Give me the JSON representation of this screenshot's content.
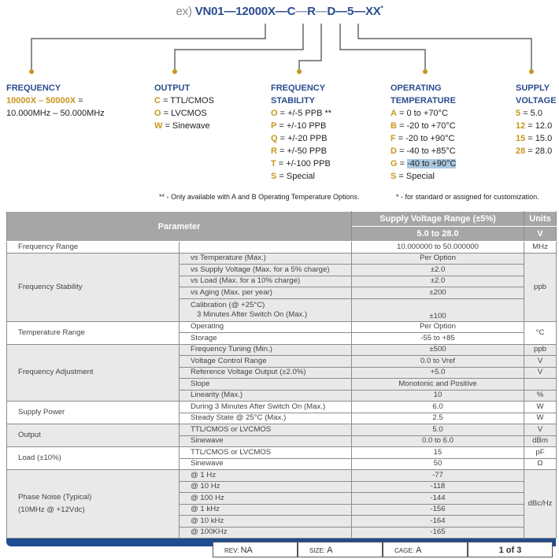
{
  "code": {
    "prefix": "ex)",
    "p1": "VN01",
    "sep": "—",
    "p2": "12000X",
    "p3": "C",
    "p4": "R",
    "p5": "D",
    "p6": "5",
    "p7": "XX",
    "mark": "*"
  },
  "colors": {
    "heading": "#2a4d8f",
    "key": "#c8961e",
    "header_bg": "#a6a6a6",
    "footer_bar": "#1f4b91"
  },
  "legend": {
    "frequency": {
      "title": "FREQUENCY",
      "key": "10000X – 50000X",
      "eq": " =",
      "line2": "10.000MHz – 50.000MHz"
    },
    "output": {
      "title": "OUTPUT",
      "items": [
        {
          "k": "C",
          "v": " = TTL/CMOS"
        },
        {
          "k": "O",
          "v": " = LVCMOS"
        },
        {
          "k": "W",
          "v": " = Sinewave"
        }
      ]
    },
    "stability": {
      "title1": "FREQUENCY",
      "title2": "STABILITY",
      "items": [
        {
          "k": "O",
          "v": " = +/-5 PPB **"
        },
        {
          "k": "P",
          "v": " = +/-10 PPB"
        },
        {
          "k": "Q",
          "v": " = +/-20 PPB"
        },
        {
          "k": "R",
          "v": " = +/-50 PPB"
        },
        {
          "k": "T",
          "v": " = +/-100 PPB"
        },
        {
          "k": "S",
          "v": " = Special"
        }
      ]
    },
    "temperature": {
      "title1": "OPERATING",
      "title2": "TEMPERATURE",
      "items": [
        {
          "k": "A",
          "v": " = 0 to +70°C"
        },
        {
          "k": "B",
          "v": " = -20 to +70°C"
        },
        {
          "k": "F",
          "v": " = -20 to +90°C"
        },
        {
          "k": "D",
          "v": " = -40 to +85°C"
        },
        {
          "k": "G",
          "v": " = ",
          "hl": "-40 to +90°C"
        },
        {
          "k": "S",
          "v": " = Special"
        }
      ]
    },
    "voltage": {
      "title1": "SUPPLY",
      "title2": "VOLTAGE",
      "items": [
        {
          "k": "5",
          "v": " = 5.0"
        },
        {
          "k": "12",
          "v": " = 12.0"
        },
        {
          "k": "15",
          "v": " = 15.0"
        },
        {
          "k": "28",
          "v": " = 28.0"
        }
      ]
    }
  },
  "notes": {
    "n1": "** - Only available with A and B Operating Temperature Options.",
    "n2": "* - for standard or assigned for customization."
  },
  "table": {
    "header": {
      "parameter": "Parameter",
      "range": "Supply Voltage Range (±5%)",
      "units": "Units",
      "range_value": "5.0 to 28.0",
      "units_value": "V"
    },
    "groups": [
      {
        "name": "Frequency Range",
        "rows": [
          {
            "sub": "",
            "val": "10.000000 to 50.000000",
            "unit": "MHz"
          }
        ]
      },
      {
        "name": "Frequency Stability",
        "unit": "ppb",
        "rows": [
          {
            "sub": "vs Temperature (Max.)",
            "val": "Per Option"
          },
          {
            "sub": "vs Supply Voltage (Max. for a 5% charge)",
            "val": "±2.0"
          },
          {
            "sub": "vs Load (Max. for a 10% charge)",
            "val": "±2.0"
          },
          {
            "sub": "vs Aging (Max. per year)",
            "val": "±200"
          },
          {
            "sub": "Calibration (@ +25°C)",
            "sub2": "3 Minutes After Switch On (Max.)",
            "val": "±100"
          }
        ]
      },
      {
        "name": "Temperature Range",
        "unit": "°C",
        "rows": [
          {
            "sub": "Operating",
            "val": "Per Option"
          },
          {
            "sub": "Storage",
            "val": "-55 to +85"
          }
        ]
      },
      {
        "name": "Frequency Adjustment",
        "rows": [
          {
            "sub": "Frequency Tuning (Min.)",
            "val": "±500",
            "unit": "ppb"
          },
          {
            "sub": "Voltage Control Range",
            "val": "0.0 to Vref",
            "unit": "V"
          },
          {
            "sub": "Reference Voltage Output (±2.0%)",
            "val": "+5.0",
            "unit": "V"
          },
          {
            "sub": "Slope",
            "val": "Monotonic and Positive",
            "unit": ""
          },
          {
            "sub": "Linearity (Max.)",
            "val": "10",
            "unit": "%"
          }
        ]
      },
      {
        "name": "Supply Power",
        "rows": [
          {
            "sub": "During 3 Minutes After Switch On (Max.)",
            "val": "6.0",
            "unit": "W"
          },
          {
            "sub": "Steady State @ 25°C (Max.)",
            "val": "2.5",
            "unit": "W"
          }
        ]
      },
      {
        "name": "Output",
        "rows": [
          {
            "sub": "TTL/CMOS or LVCMOS",
            "val": "5.0",
            "unit": "V"
          },
          {
            "sub": "Sinewave",
            "val": "0.0 to 6.0",
            "unit": "dBm"
          }
        ]
      },
      {
        "name": "Load (±10%)",
        "rows": [
          {
            "sub": "TTL/CMOS or LVCMOS",
            "val": "15",
            "unit": "pF"
          },
          {
            "sub": "Sinewave",
            "val": "50",
            "unit": "Ω"
          }
        ]
      },
      {
        "name": "Phase Noise (Typical)",
        "name2": "(10MHz @ +12Vdc)",
        "unit": "dBc/Hz",
        "rows": [
          {
            "sub": "@ 1 Hz",
            "val": "-77"
          },
          {
            "sub": "@ 10 Hz",
            "val": "-118"
          },
          {
            "sub": "@ 100 Hz",
            "val": "-144"
          },
          {
            "sub": "@ 1 kHz",
            "val": "-156"
          },
          {
            "sub": "@ 10 kHz",
            "val": "-164"
          },
          {
            "sub": "@ 100KHz",
            "val": "-165"
          }
        ]
      }
    ]
  },
  "footer": {
    "rev_label": "REV:",
    "rev": "NA",
    "size_label": "SIZE:",
    "size": "A",
    "cage_label": "CAGE:",
    "cage": "A",
    "page": "1 of 3"
  }
}
